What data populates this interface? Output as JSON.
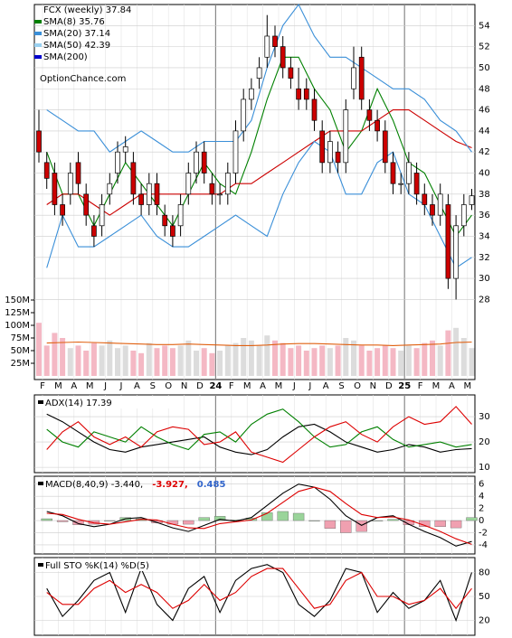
{
  "chart_data": [
    {
      "type": "candlestick",
      "title": "FCX (weekly) 37.84",
      "watermark": "OptionChance.com",
      "categories": [
        "F",
        "M",
        "A",
        "M",
        "J",
        "J",
        "A",
        "S",
        "O",
        "N",
        "D",
        "24",
        "F",
        "M",
        "A",
        "M",
        "J",
        "J",
        "A",
        "S",
        "O",
        "N",
        "D",
        "25",
        "F",
        "M",
        "A",
        "M"
      ],
      "open": [
        44,
        41,
        40,
        37,
        38,
        41,
        38,
        35,
        35,
        38,
        40,
        42,
        41,
        38,
        37,
        39,
        36,
        35,
        35,
        38,
        40,
        42,
        39,
        38,
        38,
        40,
        44,
        47,
        49,
        51,
        53,
        52,
        50,
        48,
        48,
        47,
        44,
        41,
        42,
        41,
        48,
        51,
        46,
        45,
        44,
        41,
        39,
        39,
        40,
        38,
        37,
        36,
        37,
        30,
        35,
        37
      ],
      "high": [
        46,
        42,
        41,
        38,
        41,
        42,
        39,
        36,
        38,
        40,
        43,
        43.5,
        42,
        39,
        40,
        40,
        37,
        36,
        38,
        41,
        43,
        43,
        40,
        39,
        41,
        45,
        48,
        49,
        51,
        55,
        54,
        53,
        51,
        50,
        49,
        48,
        45,
        44,
        43,
        47,
        52,
        52,
        47,
        46,
        45,
        42,
        40,
        42,
        41,
        39,
        38,
        39,
        38,
        36,
        38,
        38.5
      ],
      "low": [
        41,
        38.5,
        36,
        35,
        37,
        38,
        35,
        33,
        34,
        37,
        39,
        41,
        37,
        36,
        36,
        36,
        34,
        33,
        34,
        37,
        39,
        39,
        37,
        37,
        37,
        39,
        43,
        46,
        48,
        50,
        51,
        49,
        48,
        46,
        46,
        44,
        40,
        40,
        40,
        40,
        47,
        46,
        44,
        43,
        40,
        38,
        38,
        38,
        37,
        36,
        35,
        35,
        29,
        28,
        34,
        36.5
      ],
      "close": [
        42,
        39.5,
        37,
        36,
        40,
        39,
        36,
        34,
        37,
        39,
        42,
        42.5,
        38,
        37,
        39,
        37,
        35,
        34,
        37,
        40,
        42,
        40,
        38,
        38,
        40,
        44,
        47,
        48,
        50,
        53,
        52,
        50,
        49,
        47,
        47,
        45,
        41,
        43,
        41,
        46,
        50,
        47,
        45,
        44,
        41,
        39,
        39,
        41,
        38,
        37,
        36,
        38,
        30,
        35,
        37,
        37.84
      ],
      "up_color": "#ffffff",
      "down_color": "#cc0000",
      "ylim": [
        20.4,
        56
      ],
      "yticks": [
        28,
        30,
        32,
        34,
        36,
        38,
        40,
        42,
        44,
        46,
        48,
        50,
        52,
        54
      ],
      "legend": [
        {
          "name": "SMA(8) 35.76",
          "color": "#008000"
        },
        {
          "name": "SMA(20) 37.14",
          "color": "#3a8fd8"
        },
        {
          "name": "SMA(50) 42.39",
          "color": "#99d0f0"
        },
        {
          "name": "SMA(200)",
          "color": "#0000cc"
        }
      ],
      "lines": [
        {
          "color": "#008000",
          "values": [
            42,
            38,
            38,
            35,
            38,
            41,
            39,
            37,
            35,
            38,
            41,
            39,
            38,
            42,
            47,
            51,
            51,
            48,
            46,
            42,
            44,
            48,
            45,
            41,
            40,
            37,
            34,
            36
          ]
        },
        {
          "color": "#cc0000",
          "values": [
            37,
            38,
            38,
            37,
            36,
            37,
            38,
            38,
            38,
            38,
            38,
            38,
            39,
            39,
            40,
            41,
            42,
            43,
            44,
            44,
            44,
            45,
            46,
            46,
            45,
            44,
            43,
            42.4
          ]
        },
        {
          "color": "#3a8fd8",
          "values": [
            46,
            45,
            44,
            44,
            42,
            43,
            44,
            43,
            42,
            42,
            43,
            43,
            43,
            45,
            50,
            54,
            56,
            53,
            51,
            51,
            50,
            49,
            48,
            48,
            47,
            45,
            44,
            42
          ]
        },
        {
          "color": "#3a8fd8",
          "values": [
            31,
            36,
            33,
            33,
            34,
            35,
            36,
            34,
            33,
            33,
            34,
            35,
            36,
            35,
            34,
            38,
            41,
            43,
            42,
            38,
            38,
            41,
            42,
            38,
            37,
            34,
            31,
            32
          ]
        }
      ],
      "volume": [
        105,
        60,
        85,
        75,
        55,
        60,
        50,
        65,
        60,
        70,
        55,
        60,
        50,
        45,
        65,
        55,
        60,
        55,
        60,
        70,
        50,
        55,
        45,
        50,
        60,
        65,
        75,
        70,
        60,
        80,
        70,
        65,
        55,
        60,
        50,
        55,
        60,
        55,
        60,
        75,
        70,
        60,
        50,
        55,
        60,
        55,
        50,
        60,
        55,
        65,
        70,
        60,
        90,
        95,
        75,
        55
      ],
      "volume_ylim": [
        0,
        150
      ],
      "volume_yticks": [
        {
          "value": 25,
          "label": "25M"
        },
        {
          "value": 50,
          "label": "50M"
        },
        {
          "value": 75,
          "label": "75M"
        },
        {
          "value": 100,
          "label": "100M"
        },
        {
          "value": 125,
          "label": "125M"
        },
        {
          "value": 150,
          "label": "150M"
        }
      ],
      "volume_average": [
        65,
        66,
        67,
        66,
        65,
        64,
        63,
        62,
        62,
        63,
        62,
        61,
        60,
        60,
        61,
        63,
        64,
        64,
        63,
        62,
        61,
        61,
        60,
        61,
        62,
        63,
        66,
        67
      ],
      "volume_average_color": "#e06010"
    },
    {
      "type": "line",
      "title": "ADX(14) 17.39",
      "ylim": [
        7.9,
        38.6
      ],
      "yticks": [
        10,
        20,
        30
      ],
      "series": [
        {
          "color": "#000000",
          "values": [
            31,
            28,
            24,
            20,
            17,
            16,
            18,
            19,
            20,
            21,
            22,
            18,
            16,
            15,
            17,
            22,
            26,
            27,
            24,
            20,
            18,
            16,
            17,
            19,
            18,
            16,
            17,
            17.4
          ]
        },
        {
          "color": "#008000",
          "values": [
            25,
            20,
            18,
            24,
            22,
            20,
            26,
            22,
            19,
            17,
            23,
            24,
            20,
            27,
            31,
            33,
            28,
            22,
            18,
            19,
            24,
            26,
            21,
            18,
            19,
            20,
            18,
            19
          ]
        },
        {
          "color": "#dd0000",
          "values": [
            17,
            24,
            28,
            22,
            19,
            22,
            18,
            24,
            26,
            25,
            19,
            20,
            24,
            16,
            14,
            12,
            17,
            22,
            26,
            28,
            23,
            20,
            26,
            30,
            27,
            28,
            34,
            27
          ]
        }
      ]
    },
    {
      "type": "line",
      "legend": [
        {
          "name": "MACD(8,40,9) -3.440,",
          "color": "#000000"
        },
        {
          "name": "-3.927,",
          "color": "#dd0000"
        },
        {
          "name": "0.485",
          "color": "#3366cc"
        }
      ],
      "ylim": [
        -5.5,
        7.3
      ],
      "yticks": [
        -4,
        -2,
        0,
        2,
        4,
        6
      ],
      "histogram": {
        "up_color": "#9ad49a",
        "down_color": "#f0a0b0",
        "values": [
          0.3,
          -0.2,
          -0.7,
          -0.6,
          0,
          0.5,
          0.3,
          -0.4,
          -0.6,
          -0.6,
          0.5,
          0.7,
          0.1,
          0.4,
          1.3,
          1.5,
          1.2,
          0,
          -1.3,
          -2,
          -1.8,
          0,
          0.2,
          -0.7,
          -1,
          -1,
          -1.2,
          0.485
        ]
      },
      "series": [
        {
          "color": "#000000",
          "values": [
            1.5,
            0.8,
            -0.5,
            -1,
            -0.6,
            0.3,
            0.5,
            -0.3,
            -1.2,
            -1.8,
            -0.8,
            0.2,
            -0.1,
            0.5,
            2.5,
            4.5,
            6,
            5.5,
            3.5,
            0.8,
            -0.8,
            0.5,
            0.8,
            -0.6,
            -1.8,
            -2.8,
            -4.2,
            -3.44
          ]
        },
        {
          "color": "#dd0000",
          "values": [
            1.2,
            1,
            0.2,
            -0.4,
            -0.6,
            -0.2,
            0.2,
            0.1,
            -0.6,
            -1.2,
            -1.3,
            -0.5,
            -0.2,
            0.1,
            1.2,
            3,
            4.8,
            5.5,
            4.8,
            2.8,
            1,
            0.5,
            0.6,
            0.1,
            -0.8,
            -1.8,
            -3,
            -3.927
          ]
        }
      ]
    },
    {
      "type": "line",
      "title": "Full STO %K(14) %D(5)",
      "ylim": [
        1.3,
        98.7
      ],
      "yticks": [
        20,
        50,
        80
      ],
      "series": [
        {
          "color": "#000000",
          "values": [
            60,
            25,
            45,
            70,
            80,
            30,
            85,
            40,
            20,
            60,
            75,
            30,
            70,
            85,
            90,
            80,
            40,
            25,
            45,
            85,
            80,
            30,
            55,
            35,
            45,
            70,
            20,
            80
          ]
        },
        {
          "color": "#dd0000",
          "values": [
            55,
            40,
            40,
            60,
            70,
            55,
            65,
            55,
            35,
            45,
            65,
            45,
            55,
            75,
            85,
            85,
            60,
            35,
            40,
            70,
            80,
            50,
            50,
            40,
            45,
            60,
            35,
            60
          ]
        }
      ]
    }
  ]
}
